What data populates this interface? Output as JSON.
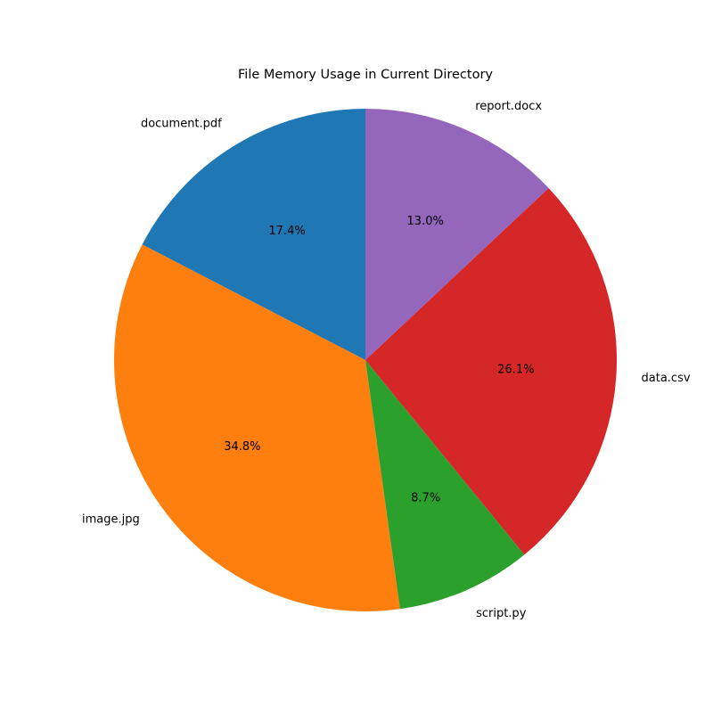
{
  "chart_data": {
    "type": "pie",
    "title": "File Memory Usage in Current Directory",
    "start_angle_deg": 90,
    "direction": "counterclockwise",
    "slices": [
      {
        "label": "document.pdf",
        "value": 17.4,
        "pct_label": "17.4%",
        "color": "#1f77b4"
      },
      {
        "label": "image.jpg",
        "value": 34.8,
        "pct_label": "34.8%",
        "color": "#ff7f0e"
      },
      {
        "label": "script.py",
        "value": 8.7,
        "pct_label": "8.7%",
        "color": "#2ca02c"
      },
      {
        "label": "data.csv",
        "value": 26.1,
        "pct_label": "26.1%",
        "color": "#d62728"
      },
      {
        "label": "report.docx",
        "value": 13.0,
        "pct_label": "13.0%",
        "color": "#9467bd"
      }
    ]
  }
}
